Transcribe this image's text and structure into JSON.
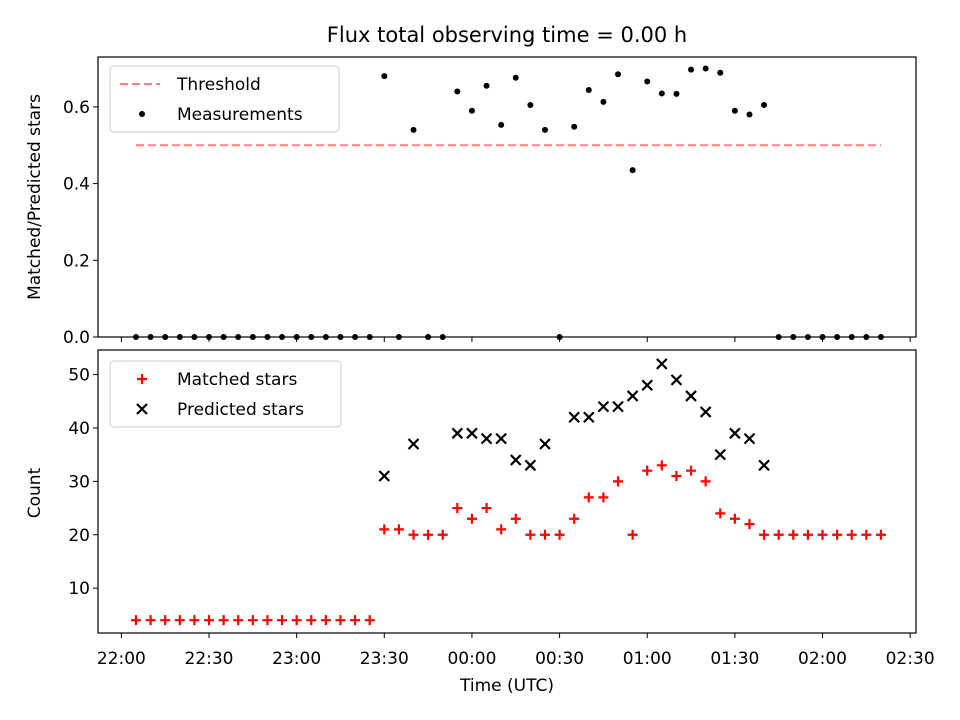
{
  "chart_data": [
    {
      "type": "scatter",
      "title": "Flux total observing time = 0.00 h",
      "ylabel": "Matched/Predicted stars",
      "xlabel": "",
      "ylim": [
        0,
        0.73
      ],
      "yticks": [
        0.0,
        0.2,
        0.4,
        0.6
      ],
      "ytick_labels": [
        "0.0",
        "0.2",
        "0.4",
        "0.6"
      ],
      "legend": {
        "position": "top-left",
        "entries": [
          "Threshold",
          "Measurements"
        ]
      },
      "threshold": {
        "name": "Threshold",
        "value": 0.5,
        "x_start": "22:05",
        "x_end": "02:20",
        "color": "#ff7f7f"
      },
      "series": [
        {
          "name": "Measurements",
          "color": "#000000",
          "points": [
            [
              "22:05",
              0
            ],
            [
              "22:10",
              0
            ],
            [
              "22:15",
              0
            ],
            [
              "22:20",
              0
            ],
            [
              "22:25",
              0
            ],
            [
              "22:30",
              0
            ],
            [
              "22:35",
              0
            ],
            [
              "22:40",
              0
            ],
            [
              "22:45",
              0
            ],
            [
              "22:50",
              0
            ],
            [
              "22:55",
              0
            ],
            [
              "23:00",
              0
            ],
            [
              "23:05",
              0
            ],
            [
              "23:10",
              0
            ],
            [
              "23:15",
              0
            ],
            [
              "23:20",
              0
            ],
            [
              "23:25",
              0
            ],
            [
              "23:30",
              0.68
            ],
            [
              "23:35",
              0
            ],
            [
              "23:40",
              0.54
            ],
            [
              "23:45",
              0
            ],
            [
              "23:50",
              0
            ],
            [
              "23:55",
              0.64
            ],
            [
              "00:00",
              0.59
            ],
            [
              "00:05",
              0.655
            ],
            [
              "00:10",
              0.553
            ],
            [
              "00:15",
              0.676
            ],
            [
              "00:20",
              0.605
            ],
            [
              "00:25",
              0.54
            ],
            [
              "00:30",
              0
            ],
            [
              "00:35",
              0.548
            ],
            [
              "00:40",
              0.644
            ],
            [
              "00:45",
              0.613
            ],
            [
              "00:50",
              0.685
            ],
            [
              "00:55",
              0.435
            ],
            [
              "01:00",
              0.666
            ],
            [
              "01:05",
              0.635
            ],
            [
              "01:10",
              0.634
            ],
            [
              "01:15",
              0.697
            ],
            [
              "01:20",
              0.7
            ],
            [
              "01:25",
              0.689
            ],
            [
              "01:30",
              0.59
            ],
            [
              "01:35",
              0.58
            ],
            [
              "01:40",
              0.605
            ],
            [
              "01:45",
              0
            ],
            [
              "01:50",
              0
            ],
            [
              "01:55",
              0
            ],
            [
              "02:00",
              0
            ],
            [
              "02:05",
              0
            ],
            [
              "02:10",
              0
            ],
            [
              "02:15",
              0
            ],
            [
              "02:20",
              0
            ]
          ]
        }
      ]
    },
    {
      "type": "scatter",
      "title": "",
      "xlabel": "Time (UTC)",
      "ylabel": "Count",
      "ylim": [
        1.6,
        54.6
      ],
      "yticks": [
        10,
        20,
        30,
        40,
        50
      ],
      "ytick_labels": [
        "10",
        "20",
        "30",
        "40",
        "50"
      ],
      "xticks": [
        "22:00",
        "22:30",
        "23:00",
        "23:30",
        "00:00",
        "00:30",
        "01:00",
        "01:30",
        "02:00",
        "02:30"
      ],
      "legend": {
        "position": "top-left",
        "entries": [
          "Matched stars",
          "Predicted stars"
        ]
      },
      "series": [
        {
          "name": "Matched stars",
          "marker": "+",
          "color": "#ff0000",
          "points": [
            [
              "22:05",
              4
            ],
            [
              "22:10",
              4
            ],
            [
              "22:15",
              4
            ],
            [
              "22:20",
              4
            ],
            [
              "22:25",
              4
            ],
            [
              "22:30",
              4
            ],
            [
              "22:35",
              4
            ],
            [
              "22:40",
              4
            ],
            [
              "22:45",
              4
            ],
            [
              "22:50",
              4
            ],
            [
              "22:55",
              4
            ],
            [
              "23:00",
              4
            ],
            [
              "23:05",
              4
            ],
            [
              "23:10",
              4
            ],
            [
              "23:15",
              4
            ],
            [
              "23:20",
              4
            ],
            [
              "23:25",
              4
            ],
            [
              "23:30",
              21
            ],
            [
              "23:35",
              21
            ],
            [
              "23:40",
              20
            ],
            [
              "23:45",
              20
            ],
            [
              "23:50",
              20
            ],
            [
              "23:55",
              25
            ],
            [
              "00:00",
              23
            ],
            [
              "00:05",
              25
            ],
            [
              "00:10",
              21
            ],
            [
              "00:15",
              23
            ],
            [
              "00:20",
              20
            ],
            [
              "00:25",
              20
            ],
            [
              "00:30",
              20
            ],
            [
              "00:35",
              23
            ],
            [
              "00:40",
              27
            ],
            [
              "00:45",
              27
            ],
            [
              "00:50",
              30
            ],
            [
              "00:55",
              20
            ],
            [
              "01:00",
              32
            ],
            [
              "01:05",
              33
            ],
            [
              "01:10",
              31
            ],
            [
              "01:15",
              32
            ],
            [
              "01:20",
              30
            ],
            [
              "01:25",
              24
            ],
            [
              "01:30",
              23
            ],
            [
              "01:35",
              22
            ],
            [
              "01:40",
              20
            ],
            [
              "01:45",
              20
            ],
            [
              "01:50",
              20
            ],
            [
              "01:55",
              20
            ],
            [
              "02:00",
              20
            ],
            [
              "02:05",
              20
            ],
            [
              "02:10",
              20
            ],
            [
              "02:15",
              20
            ],
            [
              "02:20",
              20
            ]
          ]
        },
        {
          "name": "Predicted stars",
          "marker": "x",
          "color": "#000000",
          "points": [
            [
              "23:30",
              31
            ],
            [
              "23:40",
              37
            ],
            [
              "23:55",
              39
            ],
            [
              "00:00",
              39
            ],
            [
              "00:05",
              38
            ],
            [
              "00:10",
              38
            ],
            [
              "00:15",
              34
            ],
            [
              "00:20",
              33
            ],
            [
              "00:25",
              37
            ],
            [
              "00:35",
              42
            ],
            [
              "00:40",
              42
            ],
            [
              "00:45",
              44
            ],
            [
              "00:50",
              44
            ],
            [
              "00:55",
              46
            ],
            [
              "01:00",
              48
            ],
            [
              "01:05",
              52
            ],
            [
              "01:10",
              49
            ],
            [
              "01:15",
              46
            ],
            [
              "01:20",
              43
            ],
            [
              "01:25",
              35
            ],
            [
              "01:30",
              39
            ],
            [
              "01:35",
              38
            ],
            [
              "01:40",
              33
            ]
          ]
        }
      ]
    }
  ]
}
